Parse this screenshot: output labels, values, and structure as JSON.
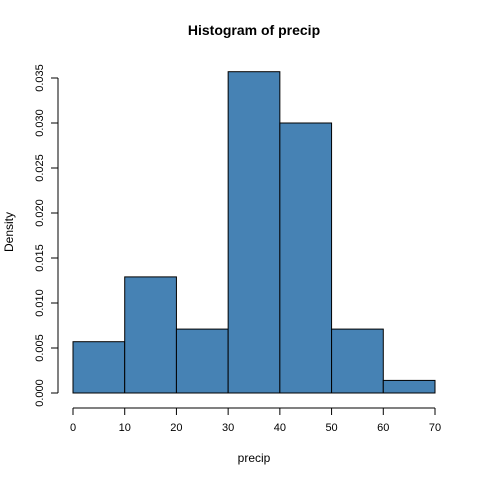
{
  "chart_data": {
    "type": "histogram",
    "title": "Histogram of precip",
    "xlabel": "precip",
    "ylabel": "Density",
    "bins": [
      {
        "start": 0,
        "end": 10,
        "density": 0.0057
      },
      {
        "start": 10,
        "end": 20,
        "density": 0.0129
      },
      {
        "start": 20,
        "end": 30,
        "density": 0.0071
      },
      {
        "start": 30,
        "end": 40,
        "density": 0.0357
      },
      {
        "start": 40,
        "end": 50,
        "density": 0.03
      },
      {
        "start": 50,
        "end": 60,
        "density": 0.0071
      },
      {
        "start": 60,
        "end": 70,
        "density": 0.0014
      }
    ],
    "xlim": [
      0,
      70
    ],
    "ylim": [
      0,
      0.035
    ],
    "x_ticks": [
      "0",
      "10",
      "20",
      "30",
      "40",
      "50",
      "60",
      "70"
    ],
    "y_ticks": [
      "0.000",
      "0.005",
      "0.010",
      "0.015",
      "0.020",
      "0.025",
      "0.030",
      "0.035"
    ],
    "bar_color": "#4682b4",
    "grid": false
  }
}
